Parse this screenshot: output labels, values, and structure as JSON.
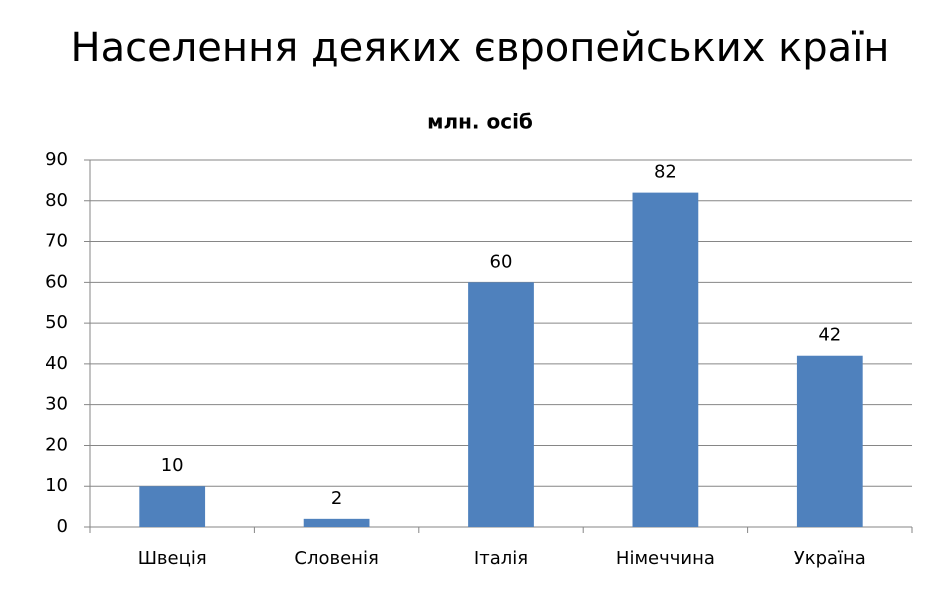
{
  "chart_data": {
    "type": "bar",
    "title": "Населення деяких європейських країн",
    "subtitle": "млн. осіб",
    "categories": [
      "Швеція",
      "Словенія",
      "Італія",
      "Німеччина",
      "Україна"
    ],
    "values": [
      10,
      2,
      60,
      82,
      42
    ],
    "color": "#4f81bd",
    "ylim": [
      0,
      90
    ],
    "yticks": [
      0,
      10,
      20,
      30,
      40,
      50,
      60,
      70,
      80,
      90
    ],
    "grid": true,
    "data_labels": true
  }
}
